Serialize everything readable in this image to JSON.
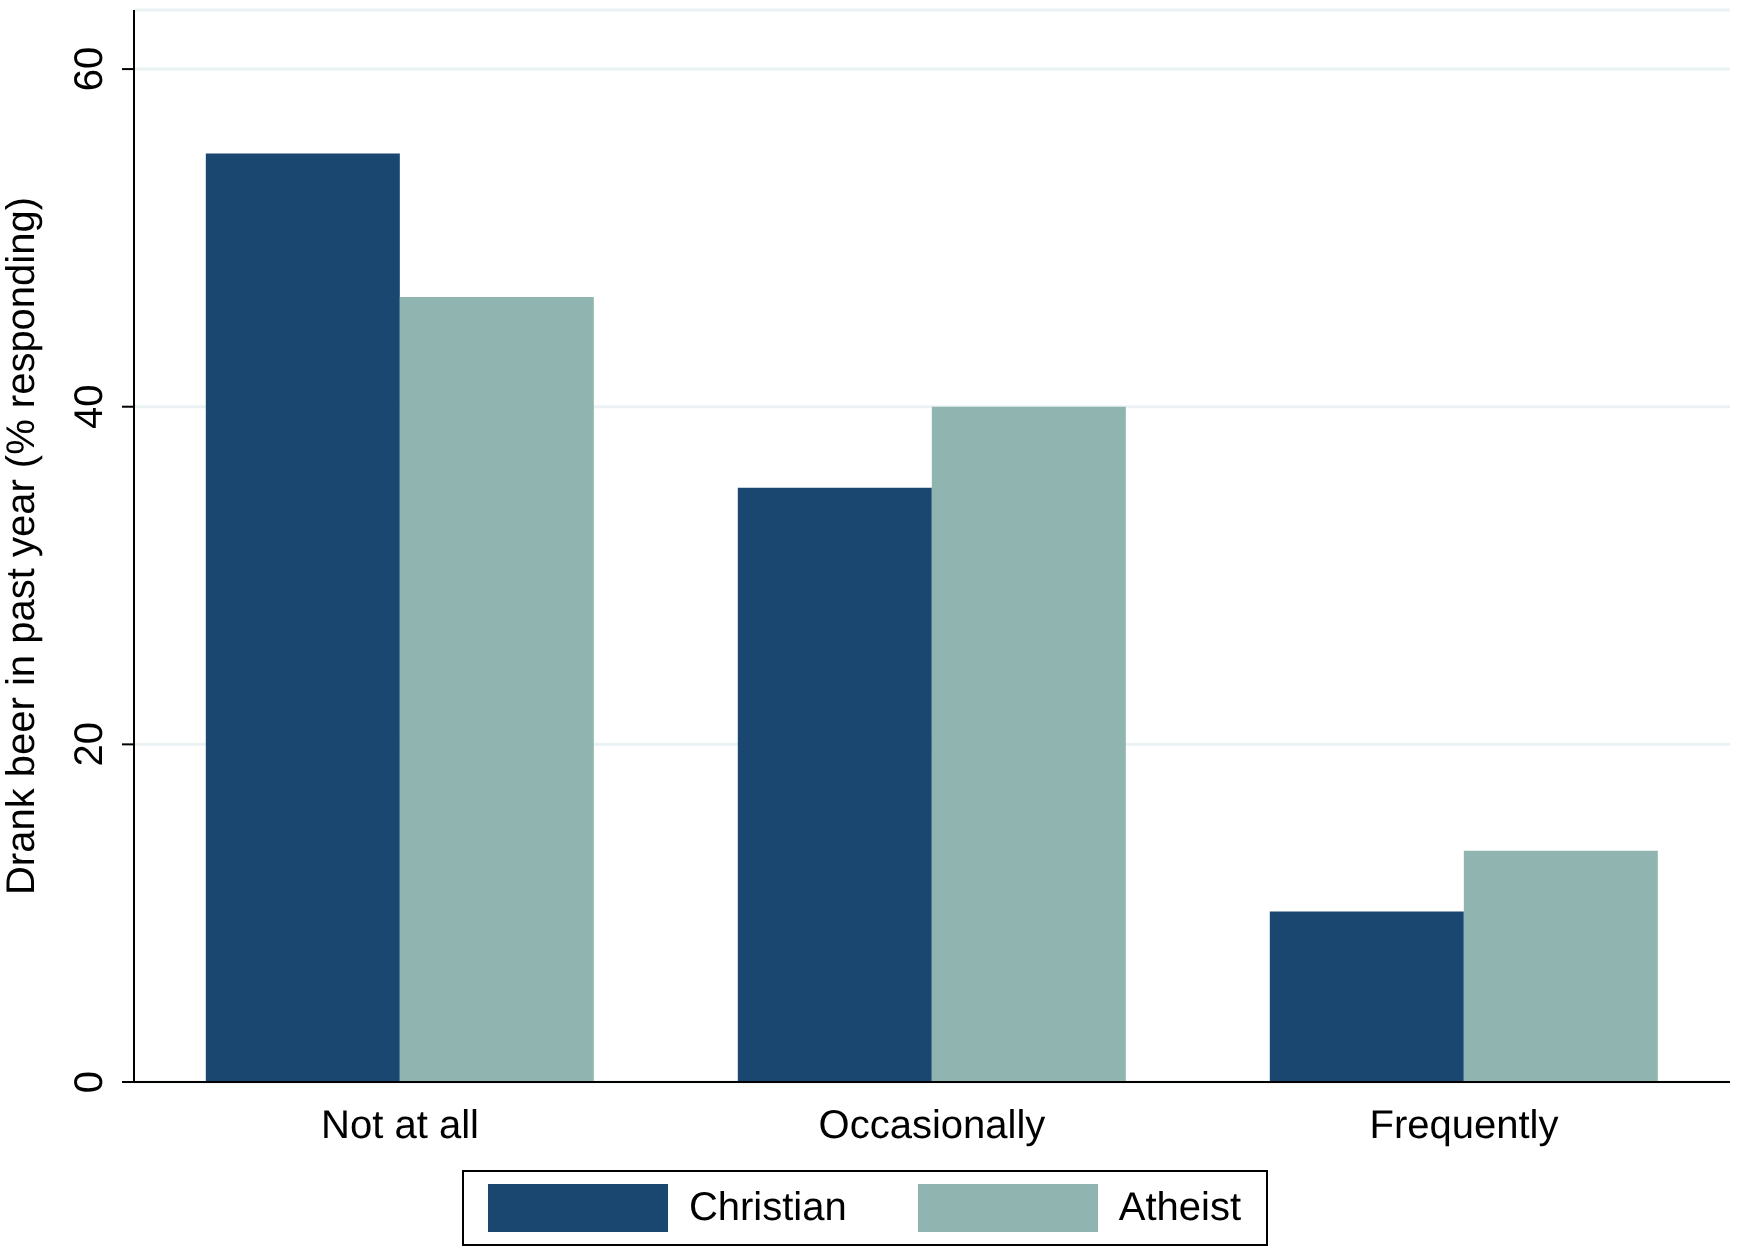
{
  "chart_data": {
    "type": "bar",
    "ylabel": "Drank beer in past year (% responding)",
    "categories": [
      "Not at all",
      "Occasionally",
      "Frequently"
    ],
    "series": [
      {
        "name": "Christian",
        "color": "#1a476f",
        "values": [
          55,
          35.2,
          10.1
        ]
      },
      {
        "name": "Atheist",
        "color": "#90b5b0",
        "values": [
          46.5,
          40,
          13.7
        ]
      }
    ],
    "ylim": [
      0,
      63.5
    ],
    "yticks": [
      0,
      20,
      40,
      60
    ],
    "grid": "y",
    "legend": "bottom"
  }
}
